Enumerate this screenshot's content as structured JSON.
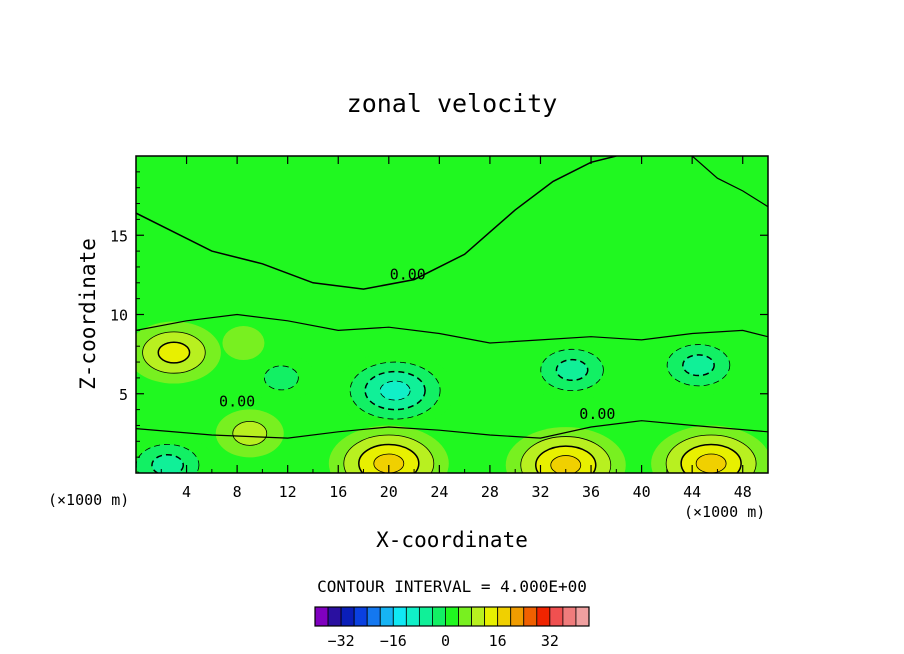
{
  "chart_data": {
    "type": "heatmap",
    "subtype": "filled-contour",
    "title": "zonal velocity",
    "xlabel": "X-coordinate",
    "ylabel": "Z-coordinate",
    "x_unit_left": "(×1000 m)",
    "x_unit_right": "(×1000 m)",
    "xlim": [
      0,
      50
    ],
    "ylim": [
      0,
      20
    ],
    "xticks": [
      4,
      8,
      12,
      16,
      20,
      24,
      28,
      32,
      36,
      40,
      44,
      48
    ],
    "yticks": [
      5,
      10,
      15
    ],
    "contour_interval_text": "CONTOUR INTERVAL = 4.000E+00",
    "contour_interval": 4.0,
    "contour_labels": [
      {
        "text": "0.00",
        "x": 21.5,
        "y": 12.2
      },
      {
        "text": "0.00",
        "x": 8.0,
        "y": 4.2
      },
      {
        "text": "0.00",
        "x": 36.5,
        "y": 3.4
      }
    ],
    "features": [
      {
        "kind": "positive",
        "x": 3.0,
        "y": 7.6,
        "peak": 10
      },
      {
        "kind": "positive",
        "x": 8.5,
        "y": 8.2,
        "peak": 4
      },
      {
        "kind": "negative",
        "x": 11.5,
        "y": 6.0,
        "peak": -8
      },
      {
        "kind": "negative",
        "x": 20.5,
        "y": 5.2,
        "peak": -14
      },
      {
        "kind": "negative",
        "x": 34.5,
        "y": 6.5,
        "peak": -10
      },
      {
        "kind": "negative",
        "x": 44.5,
        "y": 6.8,
        "peak": -10
      },
      {
        "kind": "negative",
        "x": 2.5,
        "y": 0.5,
        "peak": -12
      },
      {
        "kind": "positive",
        "x": 20.0,
        "y": 0.6,
        "peak": 14
      },
      {
        "kind": "positive",
        "x": 34.0,
        "y": 0.5,
        "peak": 14
      },
      {
        "kind": "positive",
        "x": 45.5,
        "y": 0.6,
        "peak": 14
      },
      {
        "kind": "positive",
        "x": 9.0,
        "y": 2.5,
        "peak": 6
      }
    ],
    "colorbar": {
      "levels": [
        -36,
        -32,
        -28,
        -24,
        -20,
        -16,
        -12,
        -8,
        -4,
        0,
        4,
        8,
        12,
        16,
        20,
        24,
        28,
        32,
        36
      ],
      "tick_labels": [
        "-32",
        "-16",
        "0",
        "16",
        "32"
      ],
      "tick_values": [
        -32,
        -16,
        0,
        16,
        32
      ],
      "colors": [
        "#8000c0",
        "#2a10a0",
        "#0a1eb8",
        "#0a40e0",
        "#1478f0",
        "#16b4f4",
        "#10e8f4",
        "#10f0c8",
        "#10f098",
        "#12f064",
        "#20f820",
        "#78f020",
        "#b8f020",
        "#e8f000",
        "#f0d000",
        "#f09c00",
        "#f06000",
        "#f02400",
        "#f05050",
        "#f07c7c",
        "#f0a0a0"
      ]
    }
  }
}
